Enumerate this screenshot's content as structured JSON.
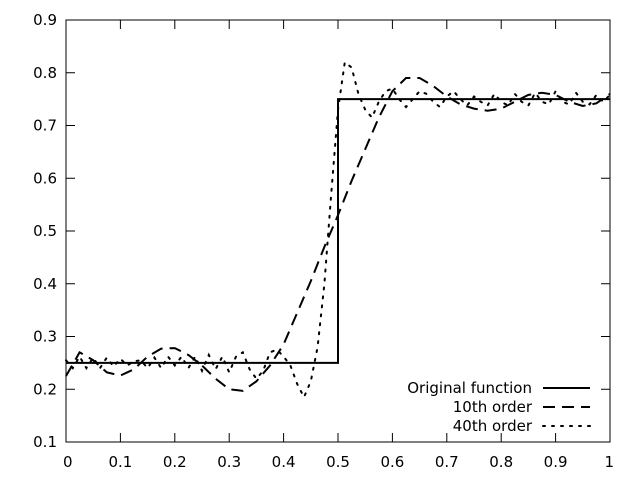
{
  "chart_data": {
    "type": "line",
    "title": "",
    "xlabel": "",
    "ylabel": "",
    "xlim": [
      0,
      1
    ],
    "ylim": [
      0.1,
      0.9
    ],
    "x_ticks": [
      0,
      0.1,
      0.2,
      0.3,
      0.4,
      0.5,
      0.6,
      0.7,
      0.8,
      0.9,
      1
    ],
    "x_tick_labels": [
      "0",
      "0.1",
      "0.2",
      "0.3",
      "0.4",
      "0.5",
      "0.6",
      "0.7",
      "0.8",
      "0.9",
      "1"
    ],
    "y_ticks": [
      0.1,
      0.2,
      0.3,
      0.4,
      0.5,
      0.6,
      0.7,
      0.8,
      0.9
    ],
    "y_tick_labels": [
      "0.1",
      "0.2",
      "0.3",
      "0.4",
      "0.5",
      "0.6",
      "0.7",
      "0.8",
      "0.9"
    ],
    "grid": false,
    "legend_position": "bottom-right",
    "series": [
      {
        "name": "Original function",
        "style": "solid",
        "color": "#000000",
        "x": [
          0,
          0.5,
          0.5,
          1
        ],
        "y": [
          0.25,
          0.25,
          0.75,
          0.75
        ]
      },
      {
        "name": "10th order",
        "style": "dashed",
        "color": "#000000",
        "x": [
          0,
          0.025,
          0.05,
          0.075,
          0.1,
          0.125,
          0.15,
          0.175,
          0.2,
          0.225,
          0.25,
          0.275,
          0.3,
          0.325,
          0.35,
          0.375,
          0.4,
          0.425,
          0.45,
          0.475,
          0.5,
          0.525,
          0.55,
          0.575,
          0.6,
          0.625,
          0.65,
          0.675,
          0.7,
          0.725,
          0.75,
          0.775,
          0.8,
          0.825,
          0.85,
          0.875,
          0.9,
          0.925,
          0.95,
          0.975,
          1
        ],
        "y": [
          0.225,
          0.27,
          0.255,
          0.232,
          0.226,
          0.238,
          0.262,
          0.277,
          0.278,
          0.265,
          0.245,
          0.22,
          0.2,
          0.197,
          0.215,
          0.245,
          0.285,
          0.345,
          0.405,
          0.47,
          0.53,
          0.595,
          0.655,
          0.715,
          0.765,
          0.79,
          0.79,
          0.775,
          0.755,
          0.74,
          0.732,
          0.728,
          0.732,
          0.745,
          0.758,
          0.762,
          0.758,
          0.745,
          0.737,
          0.742,
          0.76
        ]
      },
      {
        "name": "40th order",
        "style": "dotted",
        "color": "#000000",
        "x": [
          0,
          0.0125,
          0.025,
          0.0375,
          0.05,
          0.0625,
          0.075,
          0.0875,
          0.1,
          0.1125,
          0.125,
          0.1375,
          0.15,
          0.1625,
          0.175,
          0.1875,
          0.2,
          0.2125,
          0.225,
          0.2375,
          0.25,
          0.2625,
          0.275,
          0.2875,
          0.3,
          0.3125,
          0.325,
          0.3375,
          0.35,
          0.3625,
          0.375,
          0.3875,
          0.4,
          0.4125,
          0.425,
          0.4375,
          0.45,
          0.4625,
          0.475,
          0.4875,
          0.5,
          0.5125,
          0.525,
          0.5375,
          0.55,
          0.5625,
          0.575,
          0.5875,
          0.6,
          0.6125,
          0.625,
          0.6375,
          0.65,
          0.6625,
          0.675,
          0.6875,
          0.7,
          0.7125,
          0.725,
          0.7375,
          0.75,
          0.7625,
          0.775,
          0.7875,
          0.8,
          0.8125,
          0.825,
          0.8375,
          0.85,
          0.8625,
          0.875,
          0.8875,
          0.9,
          0.9125,
          0.925,
          0.9375,
          0.95,
          0.9625,
          0.975,
          0.9875,
          1
        ],
        "y": [
          0.255,
          0.24,
          0.262,
          0.24,
          0.26,
          0.24,
          0.26,
          0.243,
          0.258,
          0.245,
          0.253,
          0.255,
          0.24,
          0.26,
          0.24,
          0.262,
          0.245,
          0.262,
          0.24,
          0.262,
          0.235,
          0.265,
          0.238,
          0.262,
          0.232,
          0.262,
          0.27,
          0.238,
          0.22,
          0.235,
          0.27,
          0.275,
          0.262,
          0.245,
          0.21,
          0.185,
          0.215,
          0.28,
          0.4,
          0.57,
          0.73,
          0.82,
          0.81,
          0.76,
          0.73,
          0.715,
          0.745,
          0.765,
          0.77,
          0.75,
          0.735,
          0.75,
          0.765,
          0.76,
          0.745,
          0.735,
          0.755,
          0.765,
          0.75,
          0.738,
          0.755,
          0.745,
          0.738,
          0.76,
          0.745,
          0.738,
          0.76,
          0.745,
          0.738,
          0.762,
          0.745,
          0.74,
          0.765,
          0.745,
          0.74,
          0.762,
          0.745,
          0.74,
          0.758,
          0.745,
          0.758
        ]
      }
    ]
  }
}
